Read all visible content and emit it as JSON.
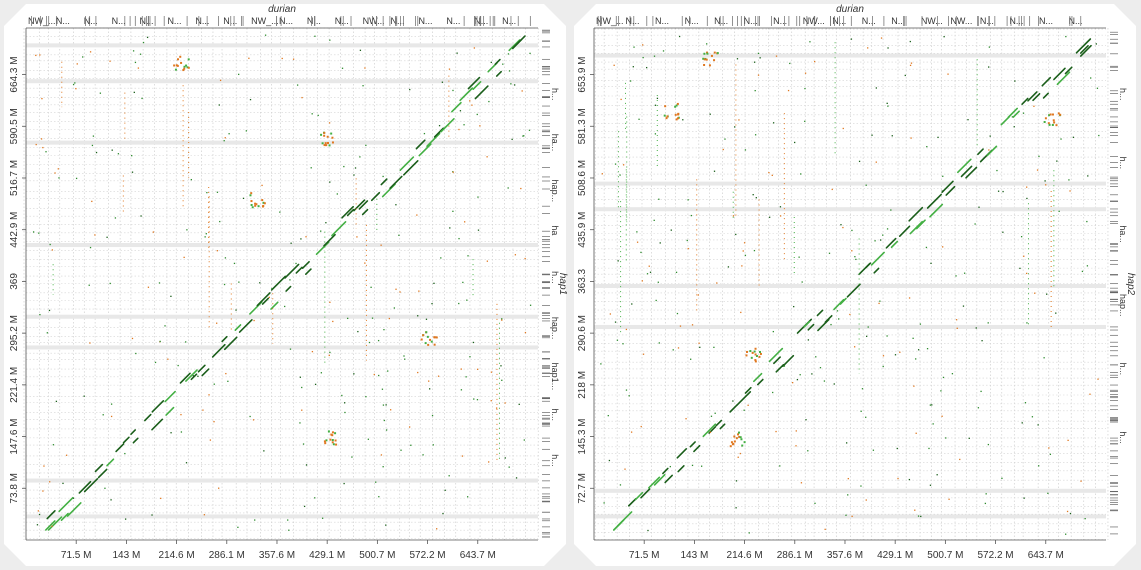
{
  "chart_data": [
    {
      "type": "scatter",
      "title": "durian",
      "ylabel": "hap1",
      "x_ticks": [
        "71.5 M",
        "143 M",
        "214.6 M",
        "286.1 M",
        "357.6 M",
        "429.1 M",
        "500.7 M",
        "572.2 M",
        "643.7 M"
      ],
      "y_ticks": [
        "73.8 M",
        "147.6 M",
        "221.4 M",
        "295.2 M",
        "369",
        "442.9 M",
        "516.7 M",
        "590.5 M",
        "664.3 M"
      ],
      "top_labels": [
        "NW_...",
        "N...",
        "N...",
        "N...",
        "N...",
        "N...",
        "N...",
        "N...",
        "NW_...",
        "N...",
        "N...",
        "N...",
        "NW...",
        "N...",
        "N...",
        "N...",
        "N...",
        "N..."
      ],
      "right_labels": [
        "h...",
        "ha...",
        "hap...",
        "ha",
        "h...",
        "hap...",
        "hap1...",
        "h...",
        "h..."
      ],
      "colors": {
        "match_dark": "#1a5e1a",
        "match_light": "#44b044",
        "inversion": "#e07820",
        "grid": "#c8c8c8"
      }
    },
    {
      "type": "scatter",
      "title": "durian",
      "ylabel": "hap2",
      "x_ticks": [
        "71.5 M",
        "143 M",
        "214.6 M",
        "286.1 M",
        "357.6 M",
        "429.1 M",
        "500.7 M",
        "572.2 M",
        "643.7 M"
      ],
      "y_ticks": [
        "72.7 M",
        "145.3 M",
        "218 M",
        "290.6 M",
        "363.3",
        "435.9 M",
        "508.6 M",
        "581.3 M",
        "653.9 M"
      ],
      "top_labels": [
        "NW_...",
        "N...",
        "N...",
        "N...",
        "N...",
        "N...",
        "N...",
        "NW...",
        "N...",
        "N...",
        "N...",
        "NW...",
        "NW...",
        "N...",
        "N...",
        "N...",
        "N..."
      ],
      "right_labels": [
        "h...",
        "h...",
        "ha...",
        "hap...",
        "h...",
        "h..."
      ],
      "colors": {
        "match_dark": "#1a5e1a",
        "match_light": "#44b044",
        "inversion": "#e07820",
        "grid": "#c8c8c8"
      }
    }
  ]
}
